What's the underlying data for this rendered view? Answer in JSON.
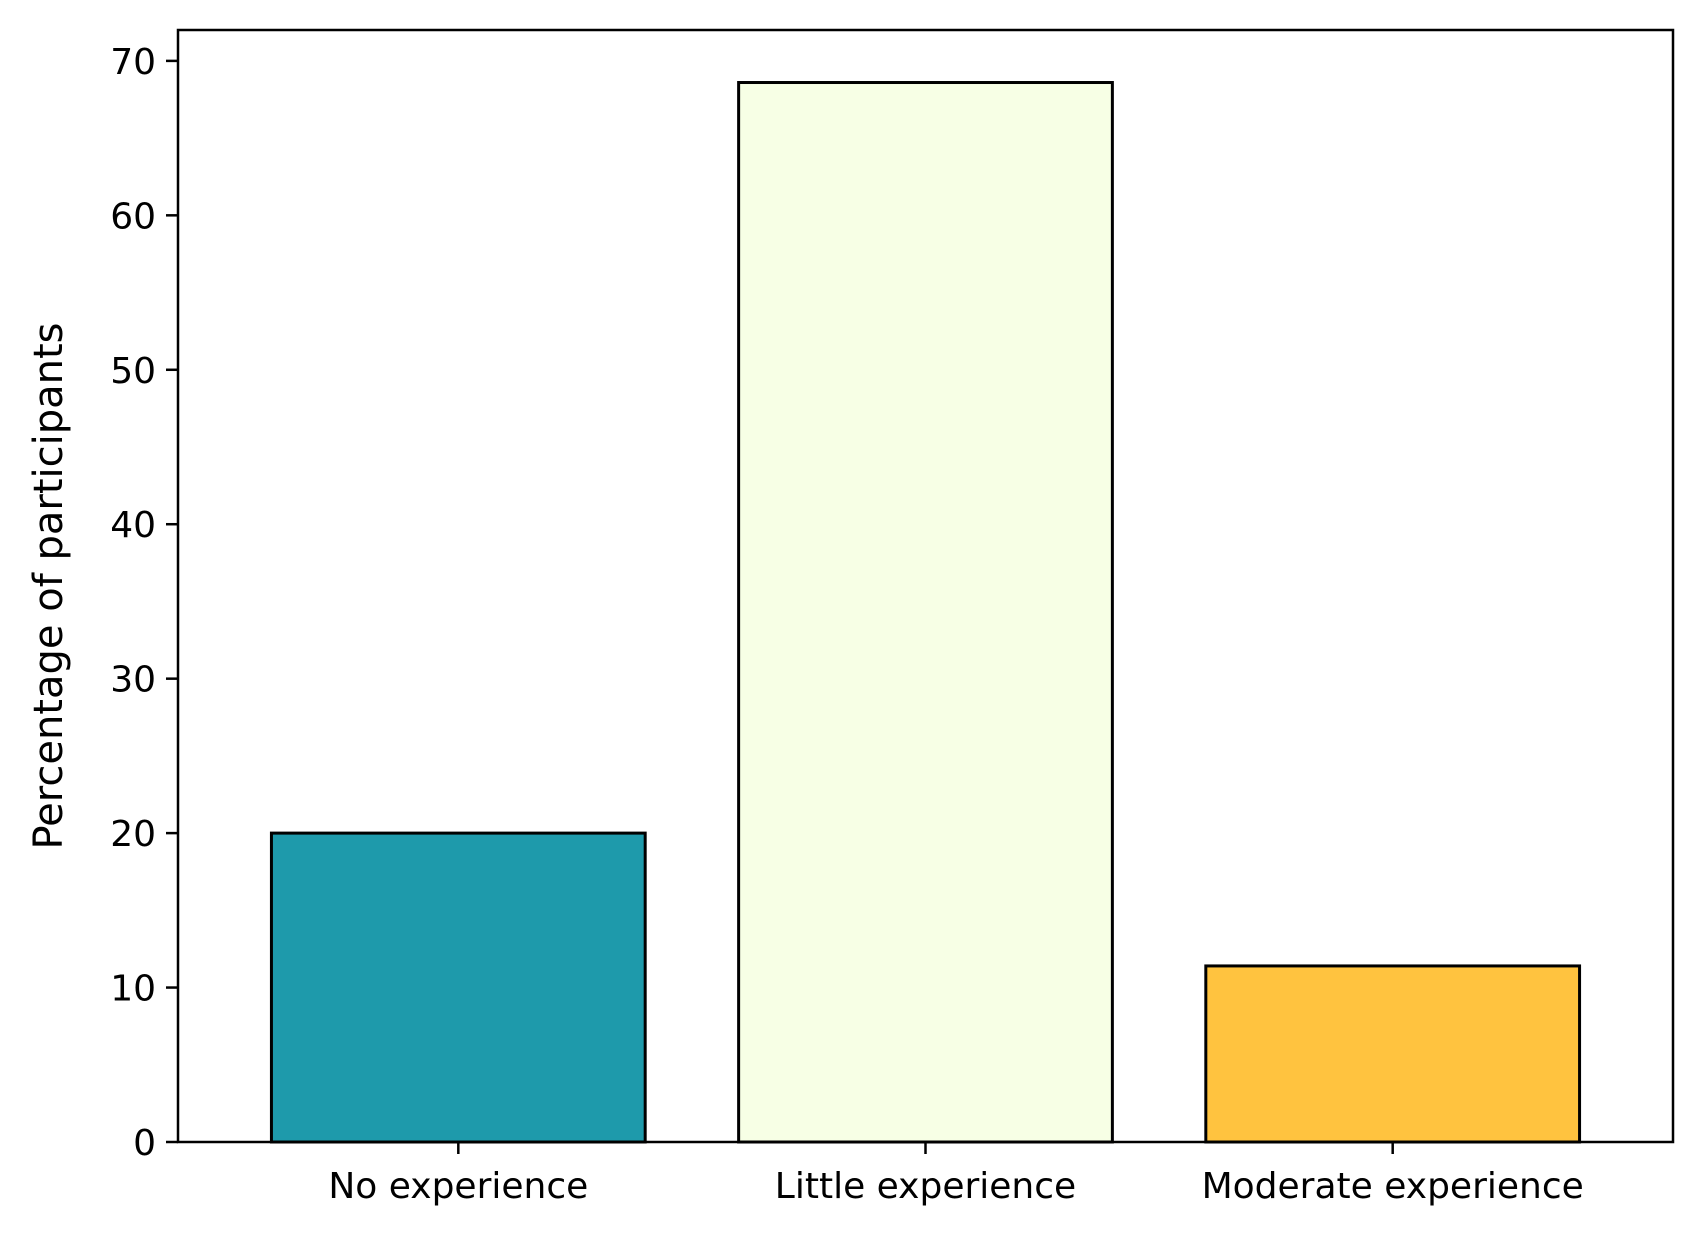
{
  "chart_data": {
    "type": "bar",
    "title": "",
    "xlabel": "",
    "ylabel": "Percentage of participants",
    "categories": [
      "No experience",
      "Little experience",
      "Moderate experience"
    ],
    "values": [
      20.0,
      68.6,
      11.4
    ],
    "colors": [
      "#1e9aab",
      "#f7ffe5",
      "#ffc33f"
    ],
    "edge_color": "#000000",
    "ylim": [
      0,
      72
    ],
    "yticks": [
      0,
      10,
      20,
      30,
      40,
      50,
      60,
      70
    ],
    "grid": false,
    "legend": false
  }
}
